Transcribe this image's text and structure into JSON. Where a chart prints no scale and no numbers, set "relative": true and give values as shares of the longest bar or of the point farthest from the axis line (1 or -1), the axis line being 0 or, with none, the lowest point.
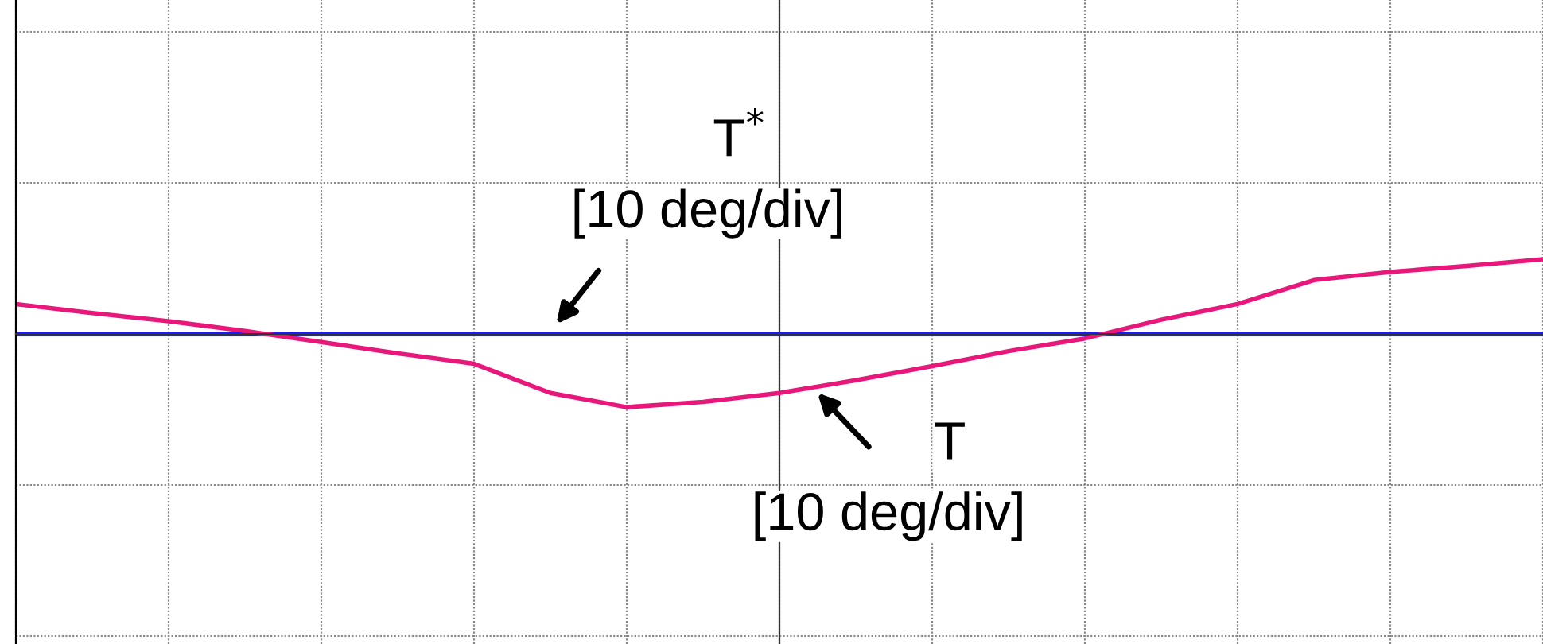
{
  "chart_data": {
    "type": "line",
    "relative": true,
    "grid": true,
    "categories": [
      null,
      null,
      null,
      null,
      null,
      null,
      null,
      null,
      null,
      null,
      null,
      null,
      null,
      null,
      null,
      null,
      null,
      null,
      null,
      null,
      null
    ],
    "series": [
      {
        "color": "#e8177a",
        "values": [
          0.4,
          0.28,
          0.17,
          0.04,
          -0.11,
          -0.26,
          -0.4,
          -0.79,
          -0.98,
          -0.91,
          -0.79,
          -0.62,
          -0.43,
          -0.23,
          -0.06,
          0.19,
          0.4,
          0.72,
          0.83,
          0.91,
          1.0
        ]
      },
      {
        "color": "#1a1aff",
        "values": [
          0,
          0,
          0,
          0,
          0,
          0,
          0,
          0,
          0,
          0,
          0,
          0,
          0,
          0,
          0,
          0,
          0,
          0,
          0,
          0,
          0
        ]
      }
    ],
    "annotations": [
      "T$^{*}$",
      "[10 deg/div]",
      "T",
      "[10 deg/div]"
    ]
  }
}
